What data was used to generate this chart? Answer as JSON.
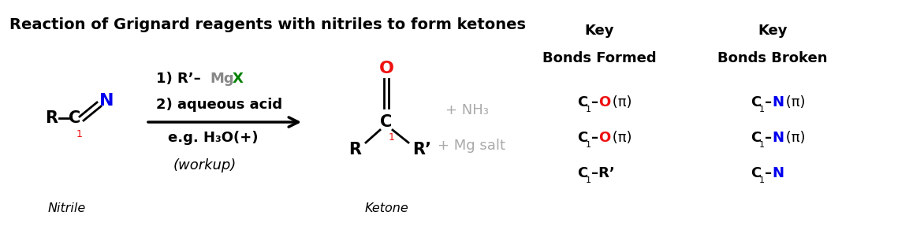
{
  "title": "Reaction of Grignard reagents with nitriles to form ketones",
  "bg_color": "#ffffff",
  "colors": {
    "black": "#000000",
    "red": "#ee1111",
    "blue": "#0000ee",
    "green": "#008000",
    "gray_mg": "#888888",
    "gray_byproduct": "#aaaaaa"
  },
  "nitrile_label": "Nitrile",
  "ketone_label": "Ketone",
  "reagent1": "1) R’–",
  "reagent1_Mg": "Mg",
  "reagent1_X": "X",
  "reagent2": "2) aqueous acid",
  "eg": "e.g. H₃O(+)",
  "workup": "(workup)",
  "byproduct1": "+ NH₃",
  "byproduct2": "+ Mg salt",
  "key1_header": "Key",
  "key2_header": "Key",
  "key1_sub": "Bonds Formed",
  "key2_sub": "Bonds Broken"
}
